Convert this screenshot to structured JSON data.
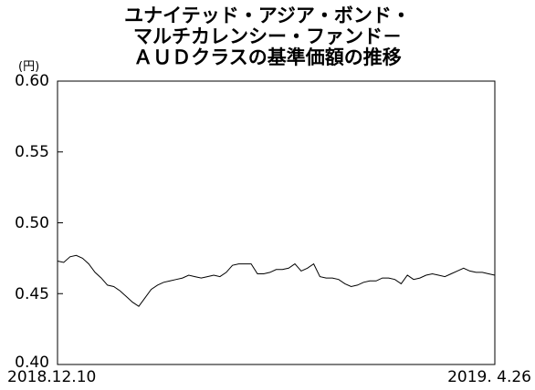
{
  "title_lines": [
    "ユナイテッド・アジア・ボンド・",
    "マルチカレンシー・ファンド－",
    "ＡＵＤクラスの基準価額の推移"
  ],
  "chart_data": {
    "type": "line",
    "title": "ユナイテッド・アジア・ボンド・マルチカレンシー・ファンド－ＡＵＤクラスの基準価額の推移",
    "unit_label": "(円)",
    "ylim": [
      0.4,
      0.6
    ],
    "y_ticks": [
      "0.60",
      "0.55",
      "0.50",
      "0.45",
      "0.40"
    ],
    "x_start": "2018.12.10",
    "x_end": "2019. 4.26",
    "grid": false,
    "series": [
      {
        "values": [
          0.473,
          0.472,
          0.476,
          0.477,
          0.475,
          0.471,
          0.465,
          0.461,
          0.456,
          0.455,
          0.452,
          0.448,
          0.444,
          0.441,
          0.447,
          0.453,
          0.456,
          0.458,
          0.459,
          0.46,
          0.461,
          0.463,
          0.462,
          0.461,
          0.462,
          0.463,
          0.462,
          0.465,
          0.47,
          0.471,
          0.471,
          0.471,
          0.464,
          0.464,
          0.465,
          0.467,
          0.467,
          0.468,
          0.471,
          0.466,
          0.468,
          0.471,
          0.462,
          0.461,
          0.461,
          0.46,
          0.457,
          0.455,
          0.456,
          0.458,
          0.459,
          0.459,
          0.461,
          0.461,
          0.46,
          0.457,
          0.463,
          0.46,
          0.461,
          0.463,
          0.464,
          0.463,
          0.462,
          0.464,
          0.466,
          0.468,
          0.466,
          0.465,
          0.465,
          0.464,
          0.463
        ]
      }
    ]
  }
}
